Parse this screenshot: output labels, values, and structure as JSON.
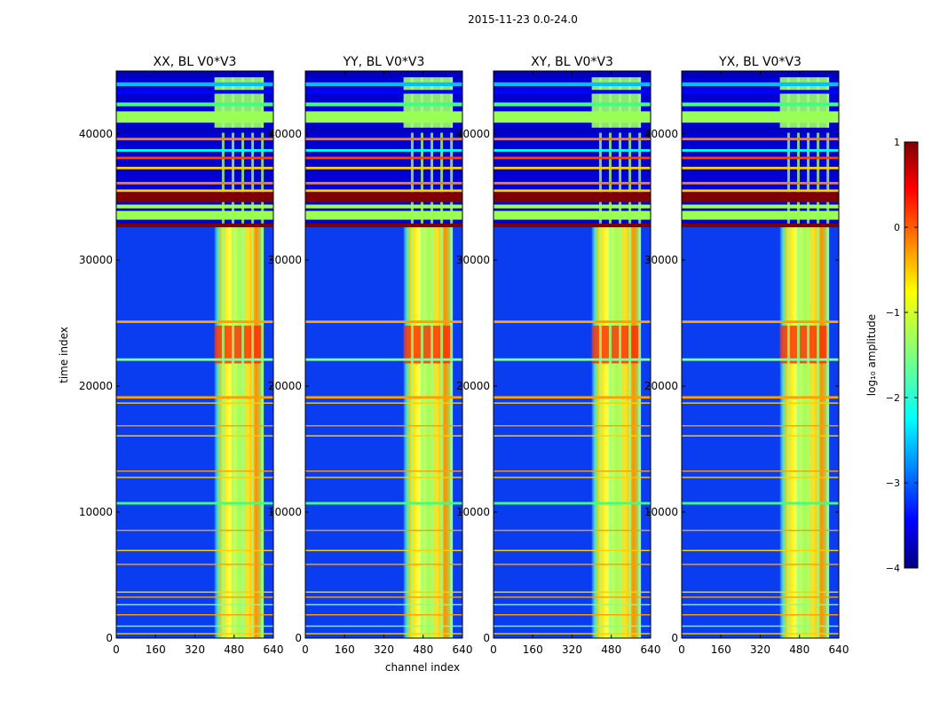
{
  "figure": {
    "title": "2015-11-23 0.0-24.0"
  },
  "chart_data": {
    "type": "heatmap",
    "colormap": "jet",
    "xlabel": "channel index",
    "ylabel": "time index",
    "xlim": [
      0,
      640
    ],
    "ylim": [
      0,
      45000
    ],
    "x_ticks": [
      0,
      160,
      320,
      480,
      640
    ],
    "y_ticks": [
      0,
      10000,
      20000,
      30000,
      40000
    ],
    "x_tick_labels": [
      "0",
      "160",
      "320",
      "480",
      "640"
    ],
    "y_tick_labels": [
      "0",
      "10000",
      "20000",
      "30000",
      "40000"
    ],
    "signal_band_channels": [
      400,
      600
    ],
    "panels": [
      {
        "title": "XX, BL V0*V3"
      },
      {
        "title": "YY, BL V0*V3"
      },
      {
        "title": "XY, BL V0*V3"
      },
      {
        "title": "YX, BL V0*V3"
      }
    ],
    "colorbar": {
      "label": "log₁₀ amplitude",
      "range": [
        -4,
        1
      ],
      "ticks": [
        1,
        0,
        -1,
        -2,
        -3,
        -4
      ],
      "tick_labels": [
        "1",
        "0",
        "−1",
        "−2",
        "−3",
        "−4"
      ]
    }
  }
}
